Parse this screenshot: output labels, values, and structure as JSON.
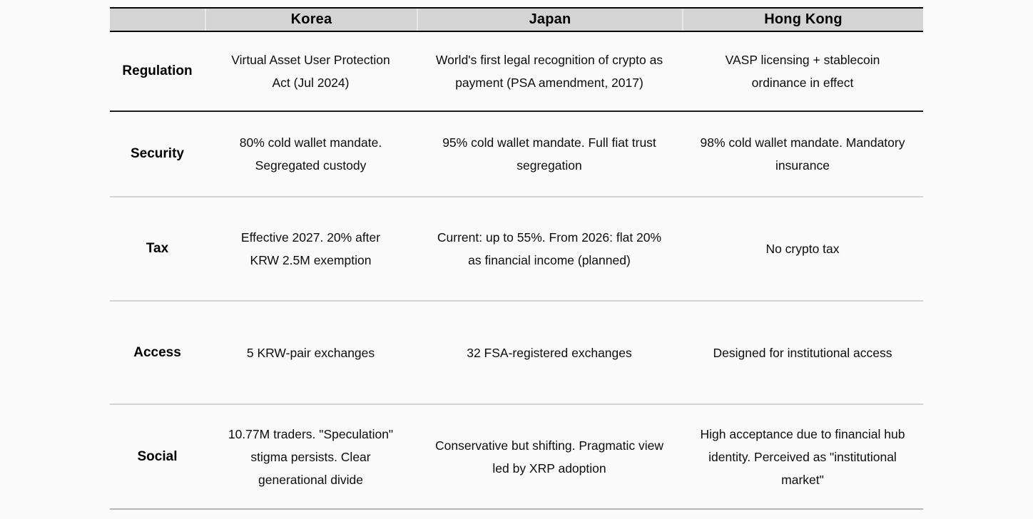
{
  "table": {
    "columns": {
      "label": "",
      "korea": "Korea",
      "japan": "Japan",
      "hong_kong": "Hong Kong"
    },
    "rows": [
      {
        "label": "Regulation",
        "cells": [
          "Virtual Asset User Protection\nAct (Jul 2024)",
          "World's first legal recognition of crypto as\npayment (PSA amendment, 2017)",
          "VASP licensing + stablecoin\nordinance in effect"
        ]
      },
      {
        "label": "Security",
        "cells": [
          "80% cold wallet mandate.\nSegregated custody",
          "95% cold wallet mandate. Full fiat trust\nsegregation",
          "98% cold wallet mandate. Mandatory\ninsurance"
        ]
      },
      {
        "label": "Tax",
        "cells": [
          "Effective 2027. 20% after\nKRW 2.5M exemption",
          "Current: up to 55%. From 2026: flat 20%\nas financial income (planned)",
          "No crypto tax"
        ]
      },
      {
        "label": "Access",
        "cells": [
          "5 KRW-pair exchanges",
          "32 FSA-registered exchanges",
          "Designed for institutional access"
        ]
      },
      {
        "label": "Social",
        "cells": [
          "10.77M traders. \"Speculation\"\nstigma persists. Clear\ngenerational divide",
          "Conservative but shifting. Pragmatic view\nled by XRP adoption",
          "High acceptance due to financial hub\nidentity. Perceived as \"institutional\nmarket\""
        ]
      }
    ]
  },
  "colors": {
    "page_bg": "#fafafa",
    "header_bg": "#d4d4d4",
    "border_dark": "#1c1c1c",
    "border_light": "#d2d2d2",
    "text": "#0c0c0c"
  }
}
